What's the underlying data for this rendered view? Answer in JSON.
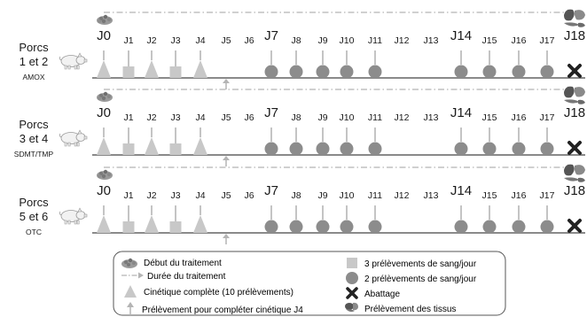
{
  "groups": [
    {
      "line1": "Porcs",
      "line2": "1 et 2",
      "drug": "AMOX"
    },
    {
      "line1": "Porcs",
      "line2": "3 et 4",
      "drug": "SDMT/TMP"
    },
    {
      "line1": "Porcs",
      "line2": "5 et 6",
      "drug": "OTC"
    }
  ],
  "days": [
    {
      "label": "J0",
      "marker": "triangle",
      "big": true
    },
    {
      "label": "J1",
      "marker": "square"
    },
    {
      "label": "J2",
      "marker": "triangle"
    },
    {
      "label": "J3",
      "marker": "square"
    },
    {
      "label": "J4",
      "marker": "triangle"
    },
    {
      "label": "J5",
      "marker": "arrow"
    },
    {
      "label": "J6",
      "marker": "none"
    },
    {
      "label": "J7",
      "marker": "circle",
      "big": true
    },
    {
      "label": "J8",
      "marker": "circle"
    },
    {
      "label": "J9",
      "marker": "circle"
    },
    {
      "label": "J10",
      "marker": "circle"
    },
    {
      "label": "J11",
      "marker": "circle"
    },
    {
      "label": "J12",
      "marker": "none"
    },
    {
      "label": "J13",
      "marker": "none"
    },
    {
      "label": "J14",
      "marker": "circle",
      "big": true
    },
    {
      "label": "J15",
      "marker": "circle"
    },
    {
      "label": "J16",
      "marker": "circle"
    },
    {
      "label": "J17",
      "marker": "circle"
    },
    {
      "label": "J18",
      "marker": "cross",
      "big": true
    }
  ],
  "legend": {
    "start_treatment": "Début du traitement",
    "treatment_duration": "Durée du traitement",
    "full_kinetics": "Cinétique complète (10 prélèvements)",
    "complement_sample": "Prélèvement pour compléter cinétique J4",
    "three_blood": "3 prélèvements de sang/jour",
    "two_blood": "2 prélèvements de sang/jour",
    "slaughter": "Abattage",
    "tissue_sample": "Prélèvement des tissus"
  },
  "colors": {
    "marker_fill": "#c8c8c8",
    "circle_fill": "#8c8c8c",
    "axis": "#8a8a8a",
    "arrow": "#b4b4b4",
    "text": "#1a1a1a"
  }
}
